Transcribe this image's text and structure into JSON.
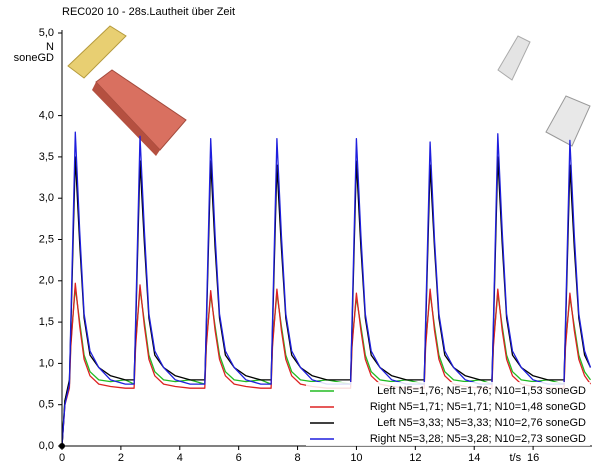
{
  "chart_data": {
    "type": "line",
    "title": "REC020 10 - 28s.Lautheit über Zeit",
    "ylabel": [
      "N",
      "soneGD"
    ],
    "xlabel": "t/s",
    "xlim": [
      0,
      18
    ],
    "ylim": [
      0,
      5
    ],
    "xticks": [
      0,
      2,
      4,
      6,
      8,
      10,
      12,
      14,
      16
    ],
    "yticks": [
      {
        "value": 0,
        "label": "0,0"
      },
      {
        "value": 0.5,
        "label": "0,5"
      },
      {
        "value": 1,
        "label": "1,0"
      },
      {
        "value": 1.5,
        "label": "1,5"
      },
      {
        "value": 2,
        "label": "2,0"
      },
      {
        "value": 2.5,
        "label": "2,5"
      },
      {
        "value": 3,
        "label": "3,0"
      },
      {
        "value": 3.5,
        "label": "3,5"
      },
      {
        "value": 4,
        "label": "4,0"
      },
      {
        "value": 5,
        "label": "5,0"
      }
    ],
    "grid": false,
    "legend": "lower right",
    "x": [
      0,
      0.1,
      0.25,
      0.3,
      0.45,
      0.6,
      0.75,
      0.95,
      1.25,
      1.65,
      2.15,
      2.45,
      2.5,
      2.65,
      2.8,
      2.95,
      3.15,
      3.45,
      3.85,
      4.35,
      4.85,
      4.9,
      5.05,
      5.2,
      5.35,
      5.55,
      5.85,
      6.25,
      6.75,
      7.1,
      7.15,
      7.3,
      7.45,
      7.6,
      7.8,
      8.1,
      8.5,
      9.0,
      9.8,
      9.85,
      10.0,
      10.15,
      10.3,
      10.5,
      10.8,
      11.2,
      11.7,
      12.3,
      12.35,
      12.5,
      12.65,
      12.8,
      13.0,
      13.3,
      13.7,
      14.2,
      14.6,
      14.65,
      14.8,
      14.95,
      15.1,
      15.3,
      15.6,
      16.0,
      16.5,
      17.05,
      17.1,
      17.25,
      17.4,
      17.55,
      17.75,
      17.95
    ],
    "series": [
      {
        "name": "Left N5=1,76; N5=1,76; N10=1,53 soneGD",
        "color": "#22bb22",
        "values": [
          0,
          0.55,
          0.75,
          1.25,
          1.92,
          1.5,
          1.1,
          0.9,
          0.8,
          0.78,
          0.8,
          0.75,
          1.25,
          1.9,
          1.5,
          1.1,
          0.9,
          0.8,
          0.78,
          0.8,
          0.75,
          1.25,
          1.83,
          1.45,
          1.1,
          0.9,
          0.8,
          0.78,
          0.8,
          0.75,
          1.25,
          1.85,
          1.45,
          1.1,
          0.9,
          0.8,
          0.78,
          0.8,
          0.75,
          1.25,
          1.8,
          1.45,
          1.1,
          0.9,
          0.8,
          0.78,
          0.8,
          0.75,
          1.25,
          1.85,
          1.45,
          1.1,
          0.9,
          0.8,
          0.78,
          0.8,
          0.75,
          1.25,
          1.85,
          1.45,
          1.1,
          0.9,
          0.8,
          0.78,
          0.8,
          0.75,
          1.25,
          1.8,
          1.45,
          1.1,
          0.9,
          0.8
        ]
      },
      {
        "name": "Right N5=1,71; N5=1,71; N10=1,48 soneGD",
        "color": "#dd2222",
        "values": [
          0,
          0.5,
          0.7,
          1.2,
          1.97,
          1.45,
          1.05,
          0.85,
          0.75,
          0.72,
          0.7,
          0.7,
          1.2,
          1.95,
          1.45,
          1.05,
          0.85,
          0.75,
          0.72,
          0.7,
          0.7,
          1.2,
          1.88,
          1.4,
          1.05,
          0.85,
          0.75,
          0.72,
          0.7,
          0.7,
          1.2,
          1.9,
          1.4,
          1.05,
          0.85,
          0.75,
          0.72,
          0.7,
          0.7,
          1.2,
          1.85,
          1.4,
          1.05,
          0.85,
          0.75,
          0.72,
          0.7,
          0.7,
          1.2,
          1.9,
          1.4,
          1.05,
          0.85,
          0.75,
          0.72,
          0.7,
          0.7,
          1.2,
          1.9,
          1.4,
          1.05,
          0.85,
          0.75,
          0.72,
          0.7,
          0.7,
          1.2,
          1.85,
          1.4,
          1.05,
          0.85,
          0.75
        ]
      },
      {
        "name": "Left N5=3,33; N5=3,33; N10=2,76 soneGD",
        "color": "#000000",
        "values": [
          0,
          0.55,
          0.8,
          1.4,
          3.5,
          2.45,
          1.55,
          1.1,
          0.95,
          0.85,
          0.8,
          0.8,
          1.4,
          3.45,
          2.45,
          1.55,
          1.1,
          0.95,
          0.85,
          0.8,
          0.8,
          1.4,
          3.45,
          2.4,
          1.55,
          1.1,
          0.95,
          0.85,
          0.8,
          0.8,
          1.4,
          3.4,
          2.4,
          1.55,
          1.1,
          0.95,
          0.85,
          0.8,
          0.8,
          1.4,
          3.45,
          2.4,
          1.55,
          1.1,
          0.95,
          0.85,
          0.8,
          0.8,
          1.4,
          3.4,
          2.4,
          1.55,
          1.1,
          0.95,
          0.85,
          0.8,
          0.8,
          1.4,
          3.5,
          2.45,
          1.55,
          1.1,
          0.95,
          0.85,
          0.8,
          0.8,
          1.4,
          3.4,
          2.4,
          1.55,
          1.1,
          0.95
        ]
      },
      {
        "name": "Right N5=3,28; N5=3,28; N10=2,73 soneGD",
        "color": "#1f1fdd",
        "values": [
          0,
          0.5,
          0.75,
          1.5,
          3.8,
          2.6,
          1.6,
          1.15,
          0.95,
          0.8,
          0.75,
          0.75,
          1.5,
          3.75,
          2.6,
          1.6,
          1.15,
          0.95,
          0.8,
          0.75,
          0.75,
          1.5,
          3.72,
          2.55,
          1.6,
          1.15,
          0.95,
          0.8,
          0.75,
          0.75,
          1.5,
          3.72,
          2.55,
          1.6,
          1.15,
          0.95,
          0.8,
          0.75,
          0.75,
          1.5,
          3.72,
          2.55,
          1.6,
          1.15,
          0.95,
          0.8,
          0.75,
          0.75,
          1.5,
          3.68,
          2.5,
          1.6,
          1.15,
          0.95,
          0.8,
          0.75,
          0.75,
          1.5,
          3.78,
          2.6,
          1.6,
          1.15,
          0.95,
          0.8,
          0.75,
          0.75,
          1.5,
          3.7,
          2.55,
          1.6,
          1.15,
          0.95
        ]
      }
    ]
  }
}
